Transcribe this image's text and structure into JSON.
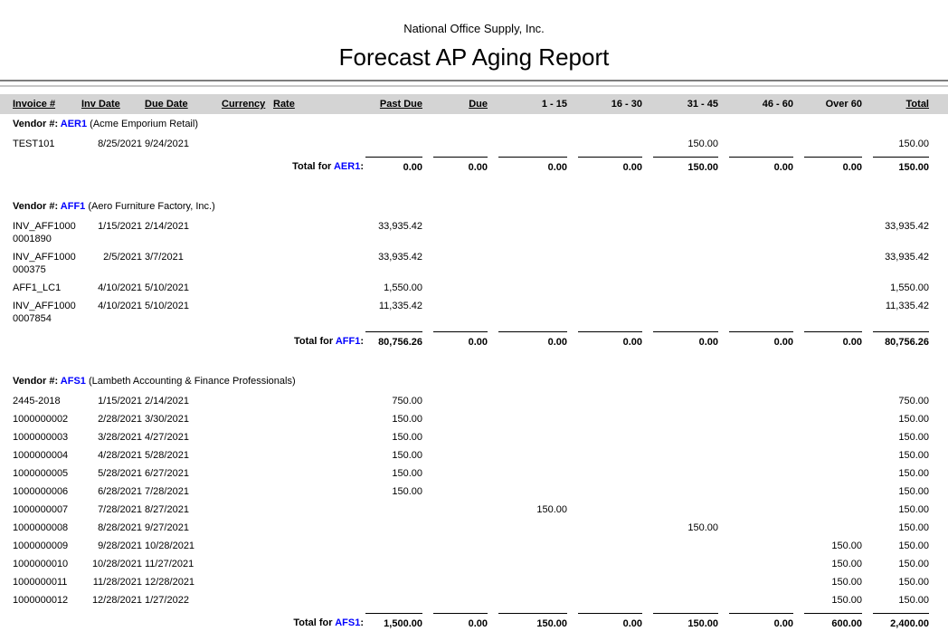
{
  "report": {
    "company": "National Office Supply, Inc.",
    "title": "Forecast AP Aging Report"
  },
  "table": {
    "columns": [
      "Invoice #",
      "Inv Date",
      "Due Date",
      "Currency",
      "Rate",
      "Past Due",
      "Due",
      "1 - 15",
      "16 - 30",
      "31 - 45",
      "46 - 60",
      "Over 60",
      "Total"
    ],
    "vendor_label": "Vendor #:",
    "total_label_prefix": "Total for",
    "total_label_suffix": ":"
  },
  "colors": {
    "link_blue": "#0000ff",
    "header_bar_gray": "#d4d4d4"
  },
  "vendors": [
    {
      "code": "AER1",
      "name": "(Acme Emporium Retail)",
      "rows": [
        {
          "invoice_lines": [
            "TEST101"
          ],
          "inv_date": "8/25/2021",
          "due_date": "9/24/2021",
          "currency": "",
          "rate": "",
          "amounts": [
            "",
            "",
            "",
            "",
            "150.00",
            "",
            "",
            "150.00"
          ]
        }
      ],
      "totals": [
        "0.00",
        "0.00",
        "0.00",
        "0.00",
        "150.00",
        "0.00",
        "0.00",
        "150.00"
      ]
    },
    {
      "code": "AFF1",
      "name": "(Aero Furniture Factory, Inc.)",
      "rows": [
        {
          "invoice_lines": [
            "INV_AFF1000",
            "0001890"
          ],
          "inv_date": "1/15/2021",
          "due_date": "2/14/2021",
          "currency": "",
          "rate": "",
          "amounts": [
            "33,935.42",
            "",
            "",
            "",
            "",
            "",
            "",
            "33,935.42"
          ]
        },
        {
          "invoice_lines": [
            "INV_AFF1000",
            "000375"
          ],
          "inv_date": "2/5/2021",
          "due_date": "3/7/2021",
          "currency": "",
          "rate": "",
          "amounts": [
            "33,935.42",
            "",
            "",
            "",
            "",
            "",
            "",
            "33,935.42"
          ]
        },
        {
          "invoice_lines": [
            "AFF1_LC1"
          ],
          "inv_date": "4/10/2021",
          "due_date": "5/10/2021",
          "currency": "",
          "rate": "",
          "amounts": [
            "1,550.00",
            "",
            "",
            "",
            "",
            "",
            "",
            "1,550.00"
          ]
        },
        {
          "invoice_lines": [
            "INV_AFF1000",
            "0007854"
          ],
          "inv_date": "4/10/2021",
          "due_date": "5/10/2021",
          "currency": "",
          "rate": "",
          "amounts": [
            "11,335.42",
            "",
            "",
            "",
            "",
            "",
            "",
            "11,335.42"
          ]
        }
      ],
      "totals": [
        "80,756.26",
        "0.00",
        "0.00",
        "0.00",
        "0.00",
        "0.00",
        "0.00",
        "80,756.26"
      ]
    },
    {
      "code": "AFS1",
      "name": "(Lambeth Accounting & Finance Professionals)",
      "rows": [
        {
          "invoice_lines": [
            "2445-2018"
          ],
          "inv_date": "1/15/2021",
          "due_date": "2/14/2021",
          "currency": "",
          "rate": "",
          "amounts": [
            "750.00",
            "",
            "",
            "",
            "",
            "",
            "",
            "750.00"
          ]
        },
        {
          "invoice_lines": [
            "1000000002"
          ],
          "inv_date": "2/28/2021",
          "due_date": "3/30/2021",
          "currency": "",
          "rate": "",
          "amounts": [
            "150.00",
            "",
            "",
            "",
            "",
            "",
            "",
            "150.00"
          ]
        },
        {
          "invoice_lines": [
            "1000000003"
          ],
          "inv_date": "3/28/2021",
          "due_date": "4/27/2021",
          "currency": "",
          "rate": "",
          "amounts": [
            "150.00",
            "",
            "",
            "",
            "",
            "",
            "",
            "150.00"
          ]
        },
        {
          "invoice_lines": [
            "1000000004"
          ],
          "inv_date": "4/28/2021",
          "due_date": "5/28/2021",
          "currency": "",
          "rate": "",
          "amounts": [
            "150.00",
            "",
            "",
            "",
            "",
            "",
            "",
            "150.00"
          ]
        },
        {
          "invoice_lines": [
            "1000000005"
          ],
          "inv_date": "5/28/2021",
          "due_date": "6/27/2021",
          "currency": "",
          "rate": "",
          "amounts": [
            "150.00",
            "",
            "",
            "",
            "",
            "",
            "",
            "150.00"
          ]
        },
        {
          "invoice_lines": [
            "1000000006"
          ],
          "inv_date": "6/28/2021",
          "due_date": "7/28/2021",
          "currency": "",
          "rate": "",
          "amounts": [
            "150.00",
            "",
            "",
            "",
            "",
            "",
            "",
            "150.00"
          ]
        },
        {
          "invoice_lines": [
            "1000000007"
          ],
          "inv_date": "7/28/2021",
          "due_date": "8/27/2021",
          "currency": "",
          "rate": "",
          "amounts": [
            "",
            "",
            "150.00",
            "",
            "",
            "",
            "",
            "150.00"
          ]
        },
        {
          "invoice_lines": [
            "1000000008"
          ],
          "inv_date": "8/28/2021",
          "due_date": "9/27/2021",
          "currency": "",
          "rate": "",
          "amounts": [
            "",
            "",
            "",
            "",
            "150.00",
            "",
            "",
            "150.00"
          ]
        },
        {
          "invoice_lines": [
            "1000000009"
          ],
          "inv_date": "9/28/2021",
          "due_date": "10/28/2021",
          "currency": "",
          "rate": "",
          "amounts": [
            "",
            "",
            "",
            "",
            "",
            "",
            "150.00",
            "150.00"
          ]
        },
        {
          "invoice_lines": [
            "1000000010"
          ],
          "inv_date": "10/28/2021",
          "due_date": "11/27/2021",
          "currency": "",
          "rate": "",
          "amounts": [
            "",
            "",
            "",
            "",
            "",
            "",
            "150.00",
            "150.00"
          ]
        },
        {
          "invoice_lines": [
            "1000000011"
          ],
          "inv_date": "11/28/2021",
          "due_date": "12/28/2021",
          "currency": "",
          "rate": "",
          "amounts": [
            "",
            "",
            "",
            "",
            "",
            "",
            "150.00",
            "150.00"
          ]
        },
        {
          "invoice_lines": [
            "1000000012"
          ],
          "inv_date": "12/28/2021",
          "due_date": "1/27/2022",
          "currency": "",
          "rate": "",
          "amounts": [
            "",
            "",
            "",
            "",
            "",
            "",
            "150.00",
            "150.00"
          ]
        }
      ],
      "totals": [
        "1,500.00",
        "0.00",
        "150.00",
        "0.00",
        "150.00",
        "0.00",
        "600.00",
        "2,400.00"
      ]
    }
  ]
}
